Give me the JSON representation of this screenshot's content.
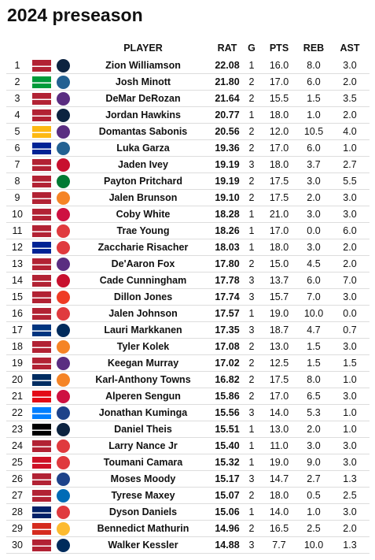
{
  "header": {
    "title": "2024 preseason"
  },
  "table": {
    "columns": [
      "PLAYER",
      "RAT",
      "G",
      "PTS",
      "REB",
      "AST"
    ],
    "rows": [
      [
        1,
        "Zion Williamson",
        "22.08",
        1,
        "16.0",
        "8.0",
        "3.0"
      ],
      [
        2,
        "Josh Minott",
        "21.80",
        2,
        "17.0",
        "6.0",
        "2.0"
      ],
      [
        3,
        "DeMar DeRozan",
        "21.64",
        2,
        "15.5",
        "1.5",
        "3.5"
      ],
      [
        4,
        "Jordan Hawkins",
        "20.77",
        1,
        "18.0",
        "1.0",
        "2.0"
      ],
      [
        5,
        "Domantas Sabonis",
        "20.56",
        2,
        "12.0",
        "10.5",
        "4.0"
      ],
      [
        6,
        "Luka Garza",
        "19.36",
        2,
        "17.0",
        "6.0",
        "1.0"
      ],
      [
        7,
        "Jaden Ivey",
        "19.19",
        3,
        "18.0",
        "3.7",
        "2.7"
      ],
      [
        8,
        "Payton Pritchard",
        "19.19",
        2,
        "17.5",
        "3.0",
        "5.5"
      ],
      [
        9,
        "Jalen Brunson",
        "19.10",
        2,
        "17.5",
        "2.0",
        "3.0"
      ],
      [
        10,
        "Coby White",
        "18.28",
        1,
        "21.0",
        "3.0",
        "3.0"
      ],
      [
        11,
        "Trae Young",
        "18.26",
        1,
        "17.0",
        "0.0",
        "6.0"
      ],
      [
        12,
        "Zaccharie Risacher",
        "18.03",
        1,
        "18.0",
        "3.0",
        "2.0"
      ],
      [
        13,
        "De'Aaron Fox",
        "17.80",
        2,
        "15.0",
        "4.5",
        "2.0"
      ],
      [
        14,
        "Cade Cunningham",
        "17.78",
        3,
        "13.7",
        "6.0",
        "7.0"
      ],
      [
        15,
        "Dillon Jones",
        "17.74",
        3,
        "15.7",
        "7.0",
        "3.0"
      ],
      [
        16,
        "Jalen Johnson",
        "17.57",
        1,
        "19.0",
        "10.0",
        "0.0"
      ],
      [
        17,
        "Lauri Markkanen",
        "17.35",
        3,
        "18.7",
        "4.7",
        "0.7"
      ],
      [
        18,
        "Tyler Kolek",
        "17.08",
        2,
        "13.0",
        "1.5",
        "3.0"
      ],
      [
        19,
        "Keegan Murray",
        "17.02",
        2,
        "12.5",
        "1.5",
        "1.5"
      ],
      [
        20,
        "Karl-Anthony Towns",
        "16.82",
        2,
        "17.5",
        "8.0",
        "1.0"
      ],
      [
        21,
        "Alperen Sengun",
        "15.86",
        2,
        "17.0",
        "6.5",
        "3.0"
      ],
      [
        22,
        "Jonathan Kuminga",
        "15.56",
        3,
        "14.0",
        "5.3",
        "1.0"
      ],
      [
        23,
        "Daniel Theis",
        "15.51",
        1,
        "13.0",
        "2.0",
        "1.0"
      ],
      [
        24,
        "Larry Nance Jr",
        "15.40",
        1,
        "11.0",
        "3.0",
        "3.0"
      ],
      [
        25,
        "Toumani Camara",
        "15.32",
        1,
        "19.0",
        "9.0",
        "3.0"
      ],
      [
        26,
        "Moses Moody",
        "15.17",
        3,
        "14.7",
        "2.7",
        "1.3"
      ],
      [
        27,
        "Tyrese Maxey",
        "15.07",
        2,
        "18.0",
        "0.5",
        "2.5"
      ],
      [
        28,
        "Dyson Daniels",
        "15.06",
        1,
        "14.0",
        "1.0",
        "3.0"
      ],
      [
        29,
        "Bennedict Mathurin",
        "14.96",
        2,
        "16.5",
        "2.5",
        "2.0"
      ],
      [
        30,
        "Walker Kessler",
        "14.88",
        3,
        "7.7",
        "10.0",
        "1.3"
      ]
    ]
  }
}
